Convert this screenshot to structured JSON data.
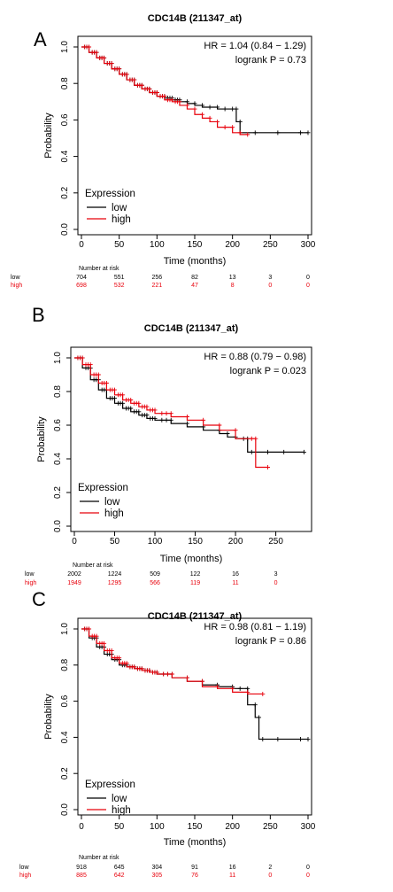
{
  "chart_data": [
    {
      "panel_label": "A",
      "type": "line",
      "title": "CDC14B (211347_at)",
      "xlabel": "Time (months)",
      "ylabel": "Probability",
      "xlim": [
        0,
        300
      ],
      "ylim": [
        0,
        1
      ],
      "xticks": [
        "0",
        "50",
        "100",
        "150",
        "200",
        "250",
        "300"
      ],
      "yticks": [
        "0.0",
        "0.2",
        "0.4",
        "0.6",
        "0.8",
        "1.0"
      ],
      "annotation": [
        "HR = 1.04 (0.84 − 1.29)",
        "logrank P = 0.73"
      ],
      "legend": {
        "title": "Expression",
        "position": "bottom-left"
      },
      "series": [
        {
          "name": "low",
          "color": "#000000",
          "x": [
            0,
            10,
            20,
            30,
            40,
            50,
            60,
            70,
            80,
            90,
            100,
            110,
            120,
            130,
            140,
            150,
            160,
            170,
            180,
            190,
            200,
            205,
            210,
            230,
            260,
            290,
            300
          ],
          "y": [
            1.0,
            0.97,
            0.94,
            0.91,
            0.88,
            0.85,
            0.82,
            0.79,
            0.77,
            0.75,
            0.73,
            0.72,
            0.71,
            0.7,
            0.69,
            0.68,
            0.67,
            0.67,
            0.66,
            0.66,
            0.66,
            0.59,
            0.53,
            0.53,
            0.53,
            0.53,
            0.53
          ]
        },
        {
          "name": "high",
          "color": "#e8000b",
          "x": [
            0,
            10,
            20,
            30,
            40,
            50,
            60,
            70,
            80,
            90,
            100,
            110,
            120,
            130,
            140,
            150,
            160,
            170,
            180,
            190,
            200,
            210,
            220
          ],
          "y": [
            1.0,
            0.97,
            0.94,
            0.91,
            0.88,
            0.85,
            0.82,
            0.79,
            0.77,
            0.75,
            0.73,
            0.71,
            0.7,
            0.68,
            0.66,
            0.63,
            0.61,
            0.59,
            0.56,
            0.56,
            0.53,
            0.52,
            0.52
          ]
        }
      ],
      "risk_table": {
        "header": "Number at risk",
        "rows": [
          {
            "label": "low",
            "color": "#000000",
            "values": [
              "704",
              "551",
              "256",
              "82",
              "13",
              "3",
              "0"
            ]
          },
          {
            "label": "high",
            "color": "#e8000b",
            "values": [
              "698",
              "532",
              "221",
              "47",
              "8",
              "0",
              "0"
            ]
          }
        ]
      }
    },
    {
      "panel_label": "B",
      "type": "line",
      "title": "CDC14B (211347_at)",
      "xlabel": "Time (months)",
      "ylabel": "Probability",
      "xlim": [
        0,
        290
      ],
      "ylim": [
        0,
        1
      ],
      "xticks": [
        "0",
        "50",
        "100",
        "150",
        "200",
        "250"
      ],
      "yticks": [
        "0.0",
        "0.2",
        "0.4",
        "0.6",
        "0.8",
        "1.0"
      ],
      "annotation": [
        "HR = 0.88 (0.79 − 0.98)",
        "logrank P = 0.023"
      ],
      "legend": {
        "title": "Expression",
        "position": "bottom-left"
      },
      "series": [
        {
          "name": "low",
          "color": "#000000",
          "x": [
            0,
            10,
            20,
            30,
            40,
            50,
            60,
            70,
            80,
            90,
            100,
            120,
            140,
            160,
            180,
            190,
            200,
            210,
            215,
            220,
            240,
            260,
            285
          ],
          "y": [
            1.0,
            0.94,
            0.87,
            0.81,
            0.76,
            0.73,
            0.7,
            0.68,
            0.66,
            0.64,
            0.63,
            0.61,
            0.59,
            0.57,
            0.55,
            0.53,
            0.52,
            0.52,
            0.44,
            0.44,
            0.44,
            0.44,
            0.44
          ]
        },
        {
          "name": "high",
          "color": "#e8000b",
          "x": [
            0,
            10,
            20,
            30,
            40,
            50,
            60,
            70,
            80,
            90,
            100,
            120,
            140,
            160,
            180,
            200,
            220,
            225,
            240
          ],
          "y": [
            1.0,
            0.96,
            0.9,
            0.85,
            0.81,
            0.78,
            0.75,
            0.73,
            0.71,
            0.69,
            0.67,
            0.65,
            0.63,
            0.6,
            0.57,
            0.52,
            0.52,
            0.35,
            0.35
          ]
        }
      ],
      "risk_table": {
        "header": "Number at risk",
        "rows": [
          {
            "label": "low",
            "color": "#000000",
            "values": [
              "2002",
              "1224",
              "509",
              "122",
              "16",
              "3"
            ]
          },
          {
            "label": "high",
            "color": "#e8000b",
            "values": [
              "1949",
              "1295",
              "566",
              "119",
              "11",
              "0"
            ]
          }
        ]
      }
    },
    {
      "panel_label": "C",
      "type": "line",
      "title": "CDC14B (211347_at)",
      "xlabel": "Time (months)",
      "ylabel": "Probability",
      "xlim": [
        0,
        300
      ],
      "ylim": [
        0,
        1
      ],
      "xticks": [
        "0",
        "50",
        "100",
        "150",
        "200",
        "250",
        "300"
      ],
      "yticks": [
        "0.0",
        "0.2",
        "0.4",
        "0.6",
        "0.8",
        "1.0"
      ],
      "annotation": [
        "HR = 0.98 (0.81 − 1.19)",
        "logrank P = 0.86"
      ],
      "legend": {
        "title": "Expression",
        "position": "bottom-left"
      },
      "series": [
        {
          "name": "low",
          "color": "#000000",
          "x": [
            0,
            10,
            20,
            30,
            40,
            50,
            60,
            70,
            80,
            90,
            100,
            120,
            140,
            160,
            180,
            200,
            210,
            220,
            230,
            235,
            240,
            260,
            290,
            300
          ],
          "y": [
            1.0,
            0.95,
            0.9,
            0.86,
            0.83,
            0.8,
            0.79,
            0.78,
            0.77,
            0.76,
            0.75,
            0.73,
            0.71,
            0.69,
            0.68,
            0.67,
            0.67,
            0.58,
            0.51,
            0.39,
            0.39,
            0.39,
            0.39,
            0.39
          ]
        },
        {
          "name": "high",
          "color": "#e8000b",
          "x": [
            0,
            10,
            20,
            30,
            40,
            50,
            60,
            70,
            80,
            90,
            100,
            120,
            140,
            160,
            180,
            200,
            220,
            240
          ],
          "y": [
            1.0,
            0.96,
            0.92,
            0.88,
            0.84,
            0.81,
            0.79,
            0.78,
            0.77,
            0.76,
            0.75,
            0.73,
            0.71,
            0.68,
            0.67,
            0.65,
            0.64,
            0.64
          ]
        }
      ],
      "risk_table": {
        "header": "Number at risk",
        "rows": [
          {
            "label": "low",
            "color": "#000000",
            "values": [
              "918",
              "645",
              "304",
              "91",
              "16",
              "2",
              "0"
            ]
          },
          {
            "label": "high",
            "color": "#e8000b",
            "values": [
              "885",
              "642",
              "305",
              "76",
              "11",
              "0",
              "0"
            ]
          }
        ]
      }
    }
  ]
}
